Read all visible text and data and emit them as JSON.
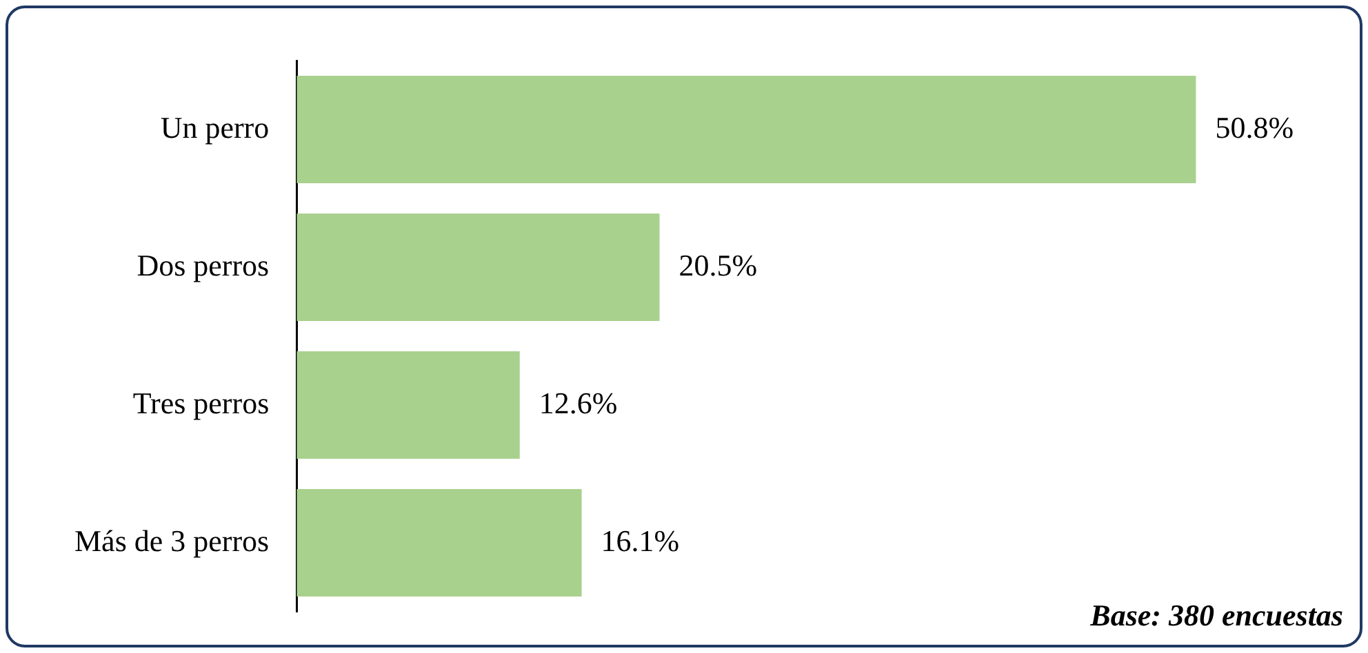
{
  "chart_data": {
    "type": "bar",
    "orientation": "horizontal",
    "categories": [
      "Un perro",
      "Dos perros",
      "Tres perros",
      "Más de 3 perros"
    ],
    "values": [
      50.8,
      20.5,
      12.6,
      16.1
    ],
    "value_labels": [
      "50.8%",
      "20.5%",
      "12.6%",
      "16.1%"
    ],
    "color": "#a9d18e",
    "legend": false,
    "annotations": [
      "Base: 380 encuestas"
    ]
  }
}
